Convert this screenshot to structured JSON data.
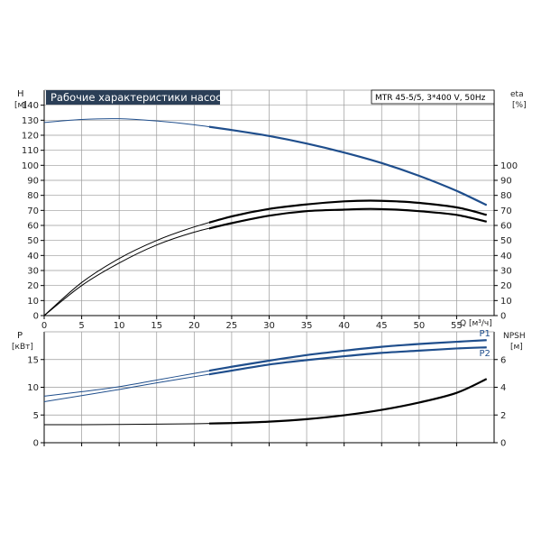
{
  "title": "Рабочие характеристики насоса",
  "model": "MTR 45-5/5, 3*400 V, 50Hz",
  "colors": {
    "blue": "#1f4e8c",
    "black": "#000000",
    "title_bg": "#2b3f57",
    "grid": "#9a9a9a"
  },
  "chart_data": [
    {
      "type": "line",
      "id": "upper",
      "left_axis": {
        "label": "H",
        "unit": "[м]",
        "ticks": [
          "0",
          "10",
          "20",
          "30",
          "40",
          "50",
          "60",
          "70",
          "80",
          "90",
          "100",
          "110",
          "120",
          "130",
          "140"
        ],
        "ylim": [
          0,
          150
        ]
      },
      "right_axis": {
        "label": "eta",
        "unit": "[%]",
        "ticks": [
          "0",
          "10",
          "20",
          "30",
          "40",
          "50",
          "60",
          "70",
          "80",
          "90",
          "100"
        ],
        "ylim": [
          0,
          150
        ]
      },
      "x_axis": {
        "label": "Q [м³/ч]",
        "ticks": [
          "0",
          "5",
          "10",
          "15",
          "20",
          "25",
          "30",
          "35",
          "40",
          "45",
          "50",
          "55"
        ],
        "xlim": [
          0,
          60
        ]
      },
      "grid": true,
      "series": [
        {
          "role": "head",
          "axis": "left",
          "color": "#1f4e8c",
          "x": [
            0,
            5,
            10,
            15,
            20,
            25,
            30,
            35,
            40,
            45,
            50,
            55,
            59
          ],
          "y": [
            128.5,
            130.5,
            131,
            129.5,
            127,
            123.5,
            119.5,
            114.5,
            108.5,
            101.5,
            93,
            83,
            73.5
          ]
        },
        {
          "role": "efficiency",
          "axis": "right",
          "color": "#000000",
          "x": [
            0,
            5,
            10,
            15,
            20,
            25,
            30,
            35,
            40,
            43.5,
            47,
            50,
            55,
            59
          ],
          "y": [
            0,
            22,
            38,
            50,
            59,
            66,
            71,
            74,
            76,
            76.5,
            76,
            75,
            72,
            67
          ]
        },
        {
          "role": "efficiency",
          "axis": "right",
          "color": "#000000",
          "x": [
            0,
            5,
            10,
            15,
            20,
            25,
            30,
            35,
            40,
            43.5,
            47,
            50,
            55,
            59
          ],
          "y": [
            0,
            20,
            35,
            47,
            55.5,
            61.5,
            66.5,
            69.5,
            70.5,
            71,
            70.5,
            69.5,
            67,
            62.5
          ]
        }
      ]
    },
    {
      "type": "line",
      "id": "lower",
      "left_axis": {
        "label": "P",
        "unit": "[кВт]",
        "ticks": [
          "0",
          "5",
          "10",
          "15"
        ],
        "ylim": [
          0,
          20
        ]
      },
      "right_axis": {
        "label": "NPSH",
        "unit": "[м]",
        "ticks": [
          "0",
          "2",
          "4",
          "6"
        ],
        "ylim": [
          0,
          8
        ]
      },
      "x_axis": {
        "label": "",
        "ticks": [],
        "xlim": [
          0,
          60
        ]
      },
      "grid": true,
      "series": [
        {
          "name": "P1",
          "axis": "left",
          "color": "#1f4e8c",
          "x": [
            0,
            5,
            10,
            15,
            20,
            25,
            30,
            35,
            40,
            45,
            50,
            55,
            59
          ],
          "y": [
            8.4,
            9.2,
            10.1,
            11.3,
            12.5,
            13.7,
            14.8,
            15.8,
            16.6,
            17.3,
            17.8,
            18.2,
            18.5
          ]
        },
        {
          "name": "P2",
          "axis": "left",
          "color": "#1f4e8c",
          "x": [
            0,
            5,
            10,
            15,
            20,
            25,
            30,
            35,
            40,
            45,
            50,
            55,
            59
          ],
          "y": [
            7.4,
            8.5,
            9.6,
            10.8,
            11.9,
            13.0,
            14.1,
            14.9,
            15.6,
            16.2,
            16.6,
            17.0,
            17.2
          ]
        },
        {
          "role": "npsh",
          "axis": "right",
          "color": "#000000",
          "x": [
            0,
            5,
            10,
            15,
            20,
            25,
            30,
            35,
            40,
            45,
            50,
            55,
            59
          ],
          "y": [
            1.3,
            1.3,
            1.32,
            1.34,
            1.37,
            1.42,
            1.52,
            1.7,
            1.98,
            2.37,
            2.9,
            3.6,
            4.6
          ]
        }
      ]
    }
  ]
}
